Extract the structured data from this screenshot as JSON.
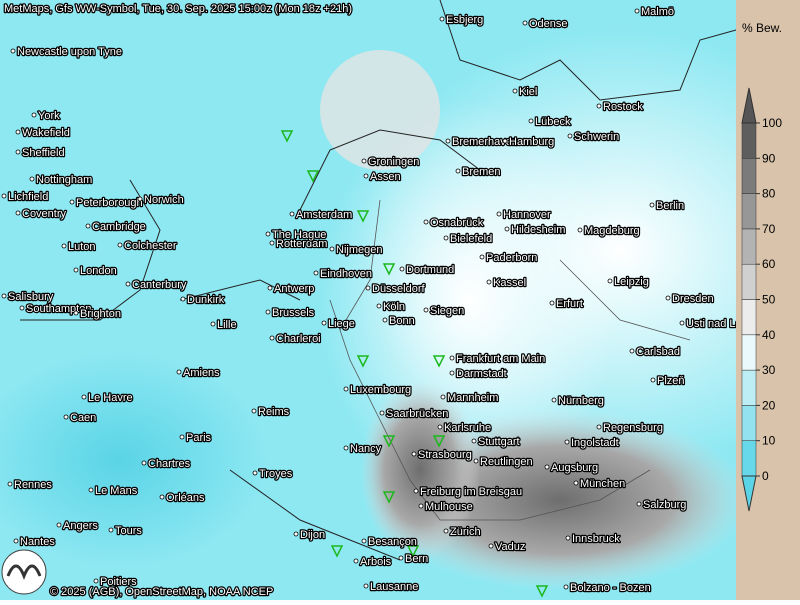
{
  "header": {
    "title": "MetMaps, Gfs WW-Symbol, Tue, 30. Sep. 2025 15:00z (Mon 18z +21h)"
  },
  "legend": {
    "title": "% Bew.",
    "ticks": [
      0,
      10,
      20,
      30,
      40,
      50,
      60,
      70,
      80,
      90,
      100
    ]
  },
  "cities": [
    "Newcastle upon Tyne",
    "York",
    "Wakefield",
    "Sheffield",
    "Nottingham",
    "Lichfield",
    "Peterborough",
    "Norwich",
    "Coventry",
    "Cambridge",
    "Luton",
    "Colchester",
    "London",
    "Canterbury",
    "Salisbury",
    "Southampton",
    "Brighton",
    "Dunkirk",
    "Lille",
    "Amiens",
    "Le Havre",
    "Caen",
    "Reims",
    "Paris",
    "Chartres",
    "Troyes",
    "Rennes",
    "Le Mans",
    "Orléans",
    "Angers",
    "Tours",
    "Nantes",
    "Poitiers",
    "Dijon",
    "Besançon",
    "Arbois",
    "Lausanne",
    "Bern",
    "Zürich",
    "Vaduz",
    "Mulhouse",
    "Freiburg im Breisgau",
    "Strasbourg",
    "Nancy",
    "Saarbrücken",
    "Luxembourg",
    "Charleroi",
    "Liege",
    "Brussels",
    "Antwerp",
    "Eindhoven",
    "Düsseldorf",
    "Köln",
    "Bonn",
    "Siegen",
    "Dortmund",
    "Nijmegen",
    "Rotterdam",
    "The Hague",
    "Amsterdam",
    "Groningen",
    "Assen",
    "Bremerhaven",
    "Hamburg",
    "Bremen",
    "Osnabrück",
    "Bielefeld",
    "Hannover",
    "Hildesheim",
    "Magdeburg",
    "Berlin",
    "Paderborn",
    "Kassel",
    "Erfurt",
    "Leipzig",
    "Dresden",
    "Usti nad Labem",
    "Frankfurt am Main",
    "Darmstadt",
    "Mannheim",
    "Karlsruhe",
    "Stuttgart",
    "Reutlingen",
    "Augsburg",
    "München",
    "Ingolstadt",
    "Nürnberg",
    "Regensburg",
    "Plzeň",
    "Carlsbad",
    "Salzburg",
    "Innsbruck",
    "Bolzano - Bozen",
    "Kiel",
    "Lübeck",
    "Schwerin",
    "Rostock",
    "Esbjerg",
    "Odense",
    "Malmö"
  ],
  "footer": {
    "copyright": "© 2025 (AGB), OpenStreetMap, NOAA NCEP"
  }
}
